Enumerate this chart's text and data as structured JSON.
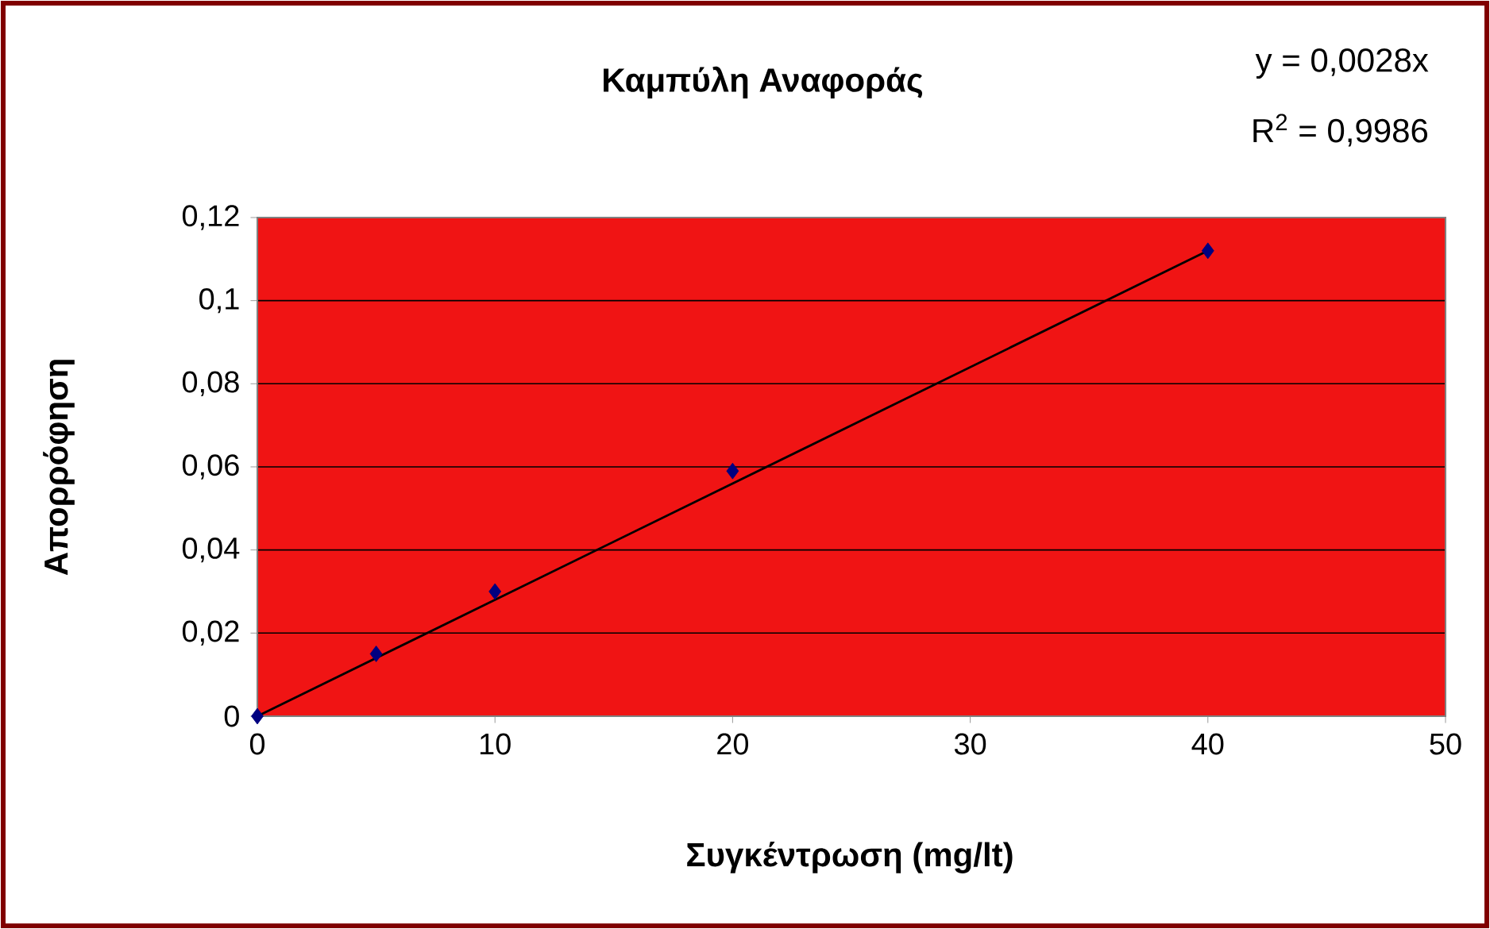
{
  "chart_data": {
    "type": "scatter",
    "title": "Καμπύλη Αναφοράς",
    "xlabel": "Συγκέντρωση (mg/lt)",
    "ylabel": "Απορρόφηση",
    "annotations": [
      "y = 0,0028x",
      "R$^{2}$ = 0,9986"
    ],
    "xlim": [
      0,
      50
    ],
    "xticks": [
      0,
      10,
      20,
      30,
      40,
      50
    ],
    "ylim": [
      0,
      0.12
    ],
    "yticks": [
      {
        "value": 0,
        "label": "0"
      },
      {
        "value": 0.02,
        "label": "0,02"
      },
      {
        "value": 0.04,
        "label": "0,04"
      },
      {
        "value": 0.06,
        "label": "0,06"
      },
      {
        "value": 0.08,
        "label": "0,08"
      },
      {
        "value": 0.1,
        "label": "0,1"
      },
      {
        "value": 0.12,
        "label": "0,12"
      }
    ],
    "grid": "y",
    "marker": "diamond",
    "series": [
      {
        "color": "#000080",
        "x": [
          0,
          5,
          10,
          20,
          40
        ],
        "values": [
          0,
          0.015,
          0.03,
          0.059,
          0.112
        ]
      },
      {
        "type": "line",
        "color": "#000000",
        "marker": "none",
        "x": [
          0,
          40
        ],
        "values": [
          0,
          0.112
        ]
      }
    ]
  }
}
